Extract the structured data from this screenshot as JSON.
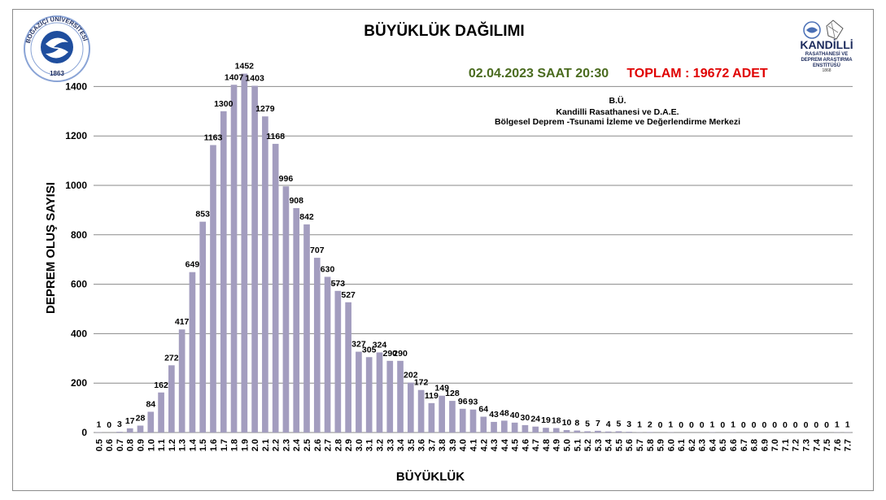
{
  "chart_data": {
    "type": "bar",
    "title": "BÜYÜKLÜK DAĞILIMI",
    "xlabel": "BÜYÜKLÜK",
    "ylabel": "DEPREM OLUŞ SAYISI",
    "ylim": [
      0,
      1500
    ],
    "yticks": [
      0,
      200,
      400,
      600,
      800,
      1000,
      1200,
      1400
    ],
    "grid": true,
    "categories": [
      "0.5",
      "0.6",
      "0.7",
      "0.8",
      "0.9",
      "1.0",
      "1.1",
      "1.2",
      "1.3",
      "1.4",
      "1.5",
      "1.6",
      "1.7",
      "1.8",
      "1.9",
      "2.0",
      "2.1",
      "2.2",
      "2.3",
      "2.4",
      "2.5",
      "2.6",
      "2.7",
      "2.8",
      "2.9",
      "3.0",
      "3.1",
      "3.2",
      "3.3",
      "3.4",
      "3.5",
      "3.6",
      "3.7",
      "3.8",
      "3.9",
      "4.0",
      "4.1",
      "4.2",
      "4.3",
      "4.4",
      "4.5",
      "4.6",
      "4.7",
      "4.8",
      "4.9",
      "5.0",
      "5.1",
      "5.2",
      "5.3",
      "5.4",
      "5.5",
      "5.6",
      "5.7",
      "5.8",
      "5.9",
      "6.0",
      "6.1",
      "6.2",
      "6.3",
      "6.4",
      "6.5",
      "6.6",
      "6.7",
      "6.8",
      "6.9",
      "7.0",
      "7.1",
      "7.2",
      "7.3",
      "7.4",
      "7.5",
      "7.6",
      "7.7"
    ],
    "values": [
      1,
      0,
      3,
      17,
      28,
      84,
      162,
      272,
      417,
      649,
      853,
      1163,
      1300,
      1407,
      1452,
      1403,
      1279,
      1168,
      996,
      908,
      842,
      707,
      630,
      573,
      527,
      327,
      305,
      324,
      290,
      290,
      202,
      172,
      119,
      149,
      128,
      96,
      93,
      64,
      43,
      48,
      40,
      30,
      24,
      19,
      18,
      10,
      8,
      5,
      7,
      4,
      5,
      3,
      1,
      2,
      0,
      1,
      0,
      0,
      0,
      1,
      0,
      1,
      0,
      0,
      0,
      0,
      0,
      0,
      0,
      0,
      0,
      1,
      1
    ]
  },
  "header": {
    "date_time": "02.04.2023 SAAT 20:30",
    "total": "TOPLAM : 19672 ADET"
  },
  "institution": {
    "line1": "B.Ü.",
    "line2": "Kandilli Rasathanesi ve D.A.E.",
    "line3": "Bölgesel Deprem -Tsunami İzleme ve Değerlendirme Merkezi"
  },
  "logos": {
    "left": {
      "text": "BOĞAZİÇİ ÜNİVERSİTESİ",
      "year": "1863",
      "color": "#1f4e9e"
    },
    "right": {
      "name": "KANDİLLİ",
      "line1": "RASATHANESİ VE",
      "line2": "DEPREM ARAŞTIRMA",
      "line3": "ENSTİTÜSÜ",
      "year": "1868"
    }
  },
  "colors": {
    "bar": "#a39dbf",
    "date": "#4a6b1f",
    "total": "#e00000",
    "grid": "#8a8a8a"
  }
}
